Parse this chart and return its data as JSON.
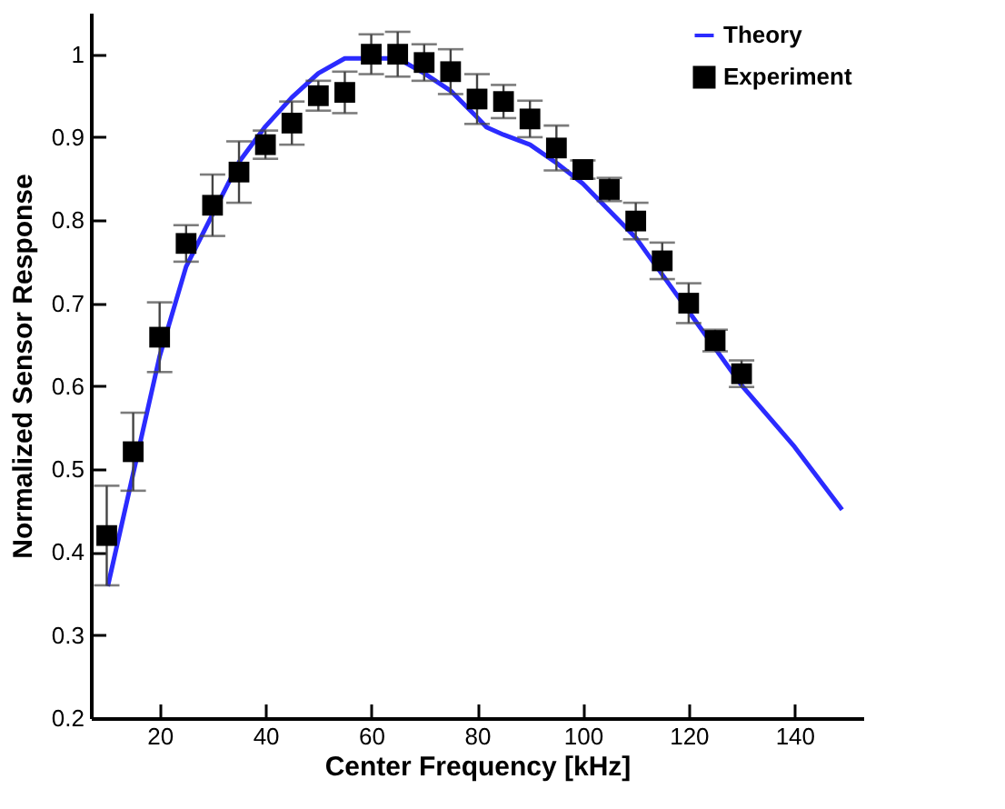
{
  "chart_data": {
    "type": "line",
    "xlabel": "Center Frequency [kHz]",
    "ylabel": "Normalized Sensor Response",
    "xlim": [
      7,
      153
    ],
    "xticks": [
      20,
      40,
      60,
      80,
      100,
      120,
      140
    ],
    "ylim": [
      0.2,
      1.05
    ],
    "yticks": [
      0.2,
      0.3,
      0.4,
      0.5,
      0.6,
      0.7,
      0.8,
      0.9,
      1
    ],
    "grid": false,
    "legend": "top right",
    "series": [
      {
        "name": "Theory",
        "type": "line",
        "color": "#2b2bff",
        "marker": "none",
        "line_style": "solid",
        "x": [
          10.2,
          20,
          25,
          35,
          40,
          45,
          50,
          55,
          65,
          70,
          75,
          80,
          81.8,
          85,
          90,
          95,
          100,
          110,
          120,
          130,
          140,
          149
        ],
        "values": [
          0.359,
          0.636,
          0.744,
          0.87,
          0.913,
          0.948,
          0.977,
          0.995,
          0.995,
          0.977,
          0.956,
          0.924,
          0.912,
          0.903,
          0.891,
          0.869,
          0.844,
          0.779,
          0.69,
          0.601,
          0.527,
          0.451
        ]
      },
      {
        "name": "Experiment",
        "type": "scatter",
        "color": "#000000",
        "marker": "square",
        "x": [
          10,
          15,
          20,
          25,
          30,
          35,
          40,
          45,
          50,
          55,
          60,
          65,
          70,
          75,
          80,
          85,
          90,
          95,
          100,
          105,
          110,
          115,
          120,
          125,
          130
        ],
        "values": [
          0.42,
          0.521,
          0.659,
          0.772,
          0.818,
          0.858,
          0.891,
          0.917,
          0.95,
          0.954,
          1.0,
          1.0,
          0.99,
          0.979,
          0.946,
          0.943,
          0.922,
          0.887,
          0.861,
          0.837,
          0.799,
          0.751,
          0.7,
          0.655,
          0.615
        ],
        "errors": [
          0.06,
          0.047,
          0.042,
          0.022,
          0.037,
          0.037,
          0.017,
          0.026,
          0.018,
          0.025,
          0.024,
          0.027,
          0.022,
          0.027,
          0.03,
          0.02,
          0.022,
          0.027,
          0.011,
          0.014,
          0.022,
          0.022,
          0.024,
          0.013,
          0.016
        ]
      }
    ]
  }
}
